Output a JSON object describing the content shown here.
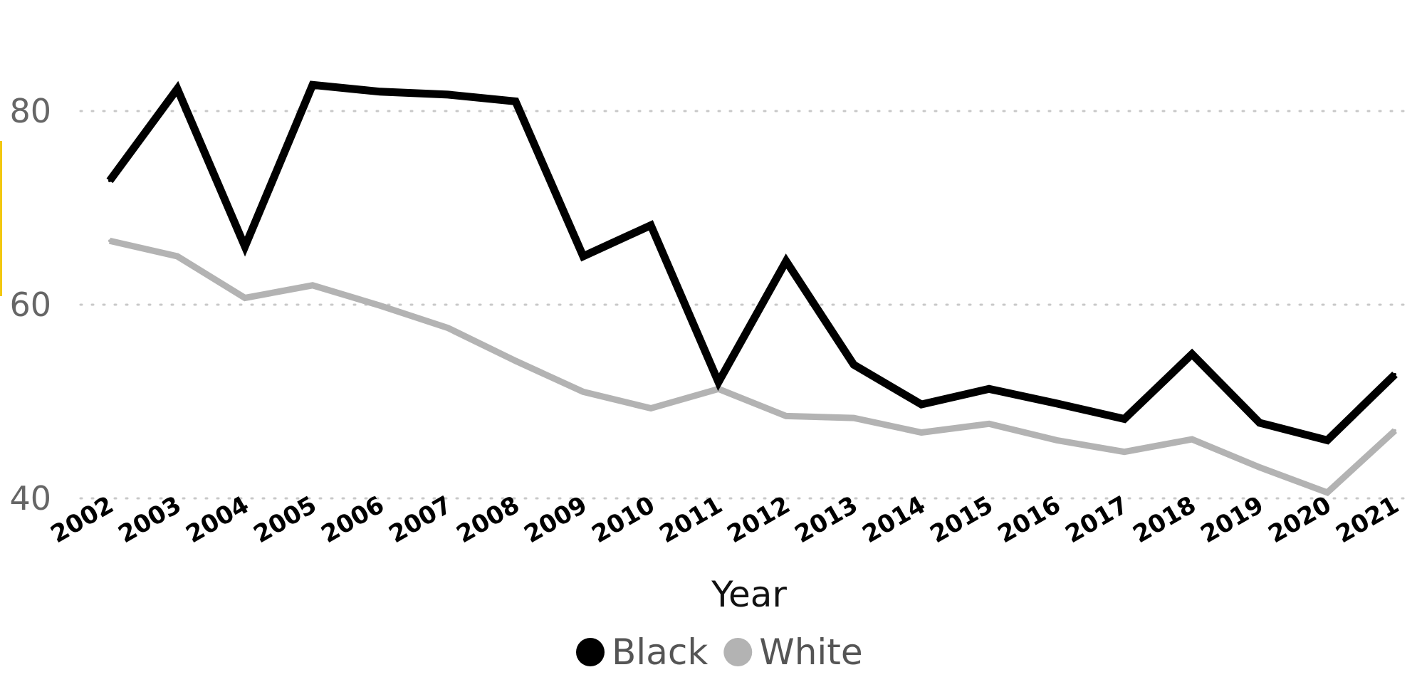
{
  "chart_data": {
    "type": "line",
    "title": "",
    "xlabel": "Year",
    "ylabel": "",
    "ylim": [
      40,
      80
    ],
    "yticks": [
      "40",
      "60",
      "80"
    ],
    "grid": "horizontal-dotted",
    "legend_position": "bottom-center",
    "categories": [
      "2002",
      "2003",
      "2004",
      "2005",
      "2006",
      "2007",
      "2008",
      "2009",
      "2010",
      "2011",
      "2012",
      "2013",
      "2014",
      "2015",
      "2016",
      "2017",
      "2018",
      "2019",
      "2020",
      "2021"
    ],
    "series": [
      {
        "name": "Black",
        "color": "#000000",
        "values": [
          72.8,
          82.3,
          66.0,
          82.7,
          82.0,
          81.7,
          81.0,
          65.0,
          68.2,
          52.0,
          64.5,
          53.8,
          49.7,
          51.3,
          49.8,
          48.2,
          54.9,
          47.8,
          46.0,
          52.8
        ]
      },
      {
        "name": "White",
        "color": "#B3B3B3",
        "values": [
          66.6,
          65.0,
          60.7,
          62.0,
          59.9,
          57.6,
          54.2,
          51.0,
          49.3,
          51.3,
          48.5,
          48.3,
          46.8,
          47.7,
          46.0,
          44.8,
          46.1,
          43.2,
          40.6,
          47.0
        ]
      }
    ]
  }
}
